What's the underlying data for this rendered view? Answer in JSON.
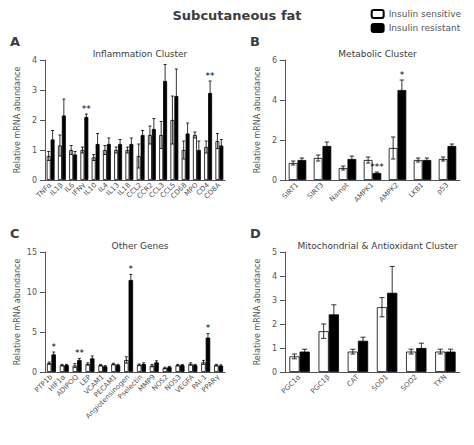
{
  "title": "Subcutaneous fat",
  "legend": "upper right",
  "edgecolor": "black",
  "chart_data": [
    {
      "type": "bar",
      "panel_label": "A",
      "title": "Inflammation Cluster",
      "ylabel": "Relative mRNA abundance",
      "categories": [
        "TNFα",
        "IL1β",
        "IL6",
        "IFNγ",
        "IL10",
        "IL4",
        "IL13",
        "IL18",
        "CCL2",
        "CCR2",
        "CCL3",
        "CCL5",
        "CD68",
        "MPO",
        "CD4",
        "CD8A"
      ],
      "series": [
        {
          "name": "Insulin sensitive",
          "color": "white",
          "values": [
            0.8,
            1.15,
            1.0,
            1.0,
            0.75,
            1.0,
            1.0,
            1.0,
            0.8,
            1.5,
            1.5,
            2.0,
            1.0,
            1.5,
            1.1,
            1.3
          ],
          "errors": [
            0.15,
            0.35,
            0.15,
            0.1,
            0.1,
            0.15,
            0.1,
            0.1,
            0.4,
            0.3,
            0.45,
            0.8,
            0.3,
            0.1,
            0.2,
            0.25
          ]
        },
        {
          "name": "Insulin resistant",
          "color": "black",
          "values": [
            1.35,
            2.15,
            0.85,
            2.1,
            1.2,
            1.2,
            1.2,
            1.2,
            1.5,
            1.7,
            3.3,
            2.8,
            1.55,
            1.0,
            2.9,
            1.15
          ],
          "errors": [
            0.3,
            0.55,
            0.1,
            0.1,
            0.35,
            0.2,
            0.15,
            0.2,
            0.15,
            0.35,
            0.55,
            0.9,
            0.35,
            0.3,
            0.4,
            0.2
          ]
        }
      ],
      "annotations": [
        {
          "text": "**",
          "category": "IFNγ",
          "series": "Insulin resistant"
        },
        {
          "text": "**",
          "category": "CD4",
          "series": "Insulin resistant"
        }
      ],
      "ylim": [
        0,
        4
      ],
      "yticks": [
        0,
        1,
        2,
        3,
        4
      ],
      "grid": false
    },
    {
      "type": "bar",
      "panel_label": "B",
      "title": "Metabolic Cluster",
      "ylabel": "Relative mRNA abundance",
      "categories": [
        "SIRT1",
        "SIRT3",
        "Nampt",
        "AMPK1",
        "AMPK2",
        "LKB1",
        "p53"
      ],
      "series": [
        {
          "name": "Insulin sensitive",
          "color": "white",
          "values": [
            0.85,
            1.1,
            0.6,
            1.0,
            1.6,
            1.0,
            1.05
          ],
          "errors": [
            0.1,
            0.15,
            0.1,
            0.15,
            0.55,
            0.1,
            0.1
          ]
        },
        {
          "name": "Insulin resistant",
          "color": "black",
          "values": [
            1.0,
            1.7,
            1.05,
            0.35,
            4.5,
            1.0,
            1.7
          ],
          "errors": [
            0.1,
            0.2,
            0.15,
            0.05,
            0.5,
            0.1,
            0.1
          ]
        }
      ],
      "annotations": [
        {
          "text": "*",
          "category": "AMPK2",
          "series": "Insulin resistant"
        },
        {
          "text": "***",
          "category": "AMPK1",
          "series": "Insulin resistant"
        }
      ],
      "ylim": [
        0,
        6
      ],
      "yticks": [
        0,
        2,
        4,
        6
      ],
      "grid": false
    },
    {
      "type": "bar",
      "panel_label": "C",
      "title": "Other Genes",
      "ylabel": "Relative mRNA abundance",
      "categories": [
        "PTP1b",
        "HIF1α",
        "ADIPOQ",
        "LEP",
        "VCAM1",
        "PECAM1",
        "Angiotensinogen",
        "Pselectin",
        "MMP9",
        "NOS2",
        "NOS3",
        "VEGFA",
        "PAI-1",
        "PPARγ"
      ],
      "series": [
        {
          "name": "Insulin sensitive",
          "color": "white",
          "values": [
            1.1,
            0.85,
            0.8,
            1.0,
            0.85,
            1.0,
            1.5,
            0.9,
            0.8,
            0.5,
            0.85,
            1.0,
            1.2,
            0.85
          ],
          "errors": [
            0.15,
            0.1,
            0.25,
            0.15,
            0.1,
            0.1,
            0.4,
            0.1,
            0.15,
            0.1,
            0.1,
            0.15,
            0.25,
            0.1
          ]
        },
        {
          "name": "Insulin resistant",
          "color": "black",
          "values": [
            2.2,
            0.85,
            1.5,
            1.7,
            0.7,
            0.85,
            11.5,
            1.0,
            1.2,
            0.6,
            0.85,
            0.85,
            4.3,
            0.8
          ],
          "errors": [
            0.3,
            0.1,
            0.2,
            0.3,
            0.1,
            0.1,
            0.7,
            0.15,
            0.2,
            0.1,
            0.1,
            0.1,
            0.5,
            0.1
          ]
        }
      ],
      "annotations": [
        {
          "text": "*",
          "category": "PTP1b",
          "series": "Insulin resistant"
        },
        {
          "text": "**",
          "category": "ADIPOQ",
          "series": "Insulin resistant"
        },
        {
          "text": "*",
          "category": "Angiotensinogen",
          "series": "Insulin resistant"
        },
        {
          "text": "*",
          "category": "PAI-1",
          "series": "Insulin resistant"
        }
      ],
      "ylim": [
        0,
        15
      ],
      "yticks": [
        0,
        5,
        10,
        15
      ],
      "grid": false
    },
    {
      "type": "bar",
      "panel_label": "D",
      "title": "Mitochondrial & Antioxidant Cluster",
      "ylabel": "Relative mRNA abundance",
      "categories": [
        "PGC1α",
        "PGC1β",
        "CAT",
        "SOD1",
        "SOD2",
        "TXN"
      ],
      "series": [
        {
          "name": "Insulin sensitive",
          "color": "white",
          "values": [
            0.65,
            1.7,
            0.85,
            2.7,
            0.85,
            0.85
          ],
          "errors": [
            0.1,
            0.3,
            0.1,
            0.4,
            0.1,
            0.1
          ]
        },
        {
          "name": "Insulin resistant",
          "color": "black",
          "values": [
            0.85,
            2.4,
            1.3,
            3.3,
            1.0,
            0.85
          ],
          "errors": [
            0.1,
            0.4,
            0.15,
            1.1,
            0.2,
            0.1
          ]
        }
      ],
      "annotations": [],
      "ylim": [
        0,
        5
      ],
      "yticks": [
        0,
        1,
        2,
        3,
        4,
        5
      ],
      "grid": false
    }
  ]
}
